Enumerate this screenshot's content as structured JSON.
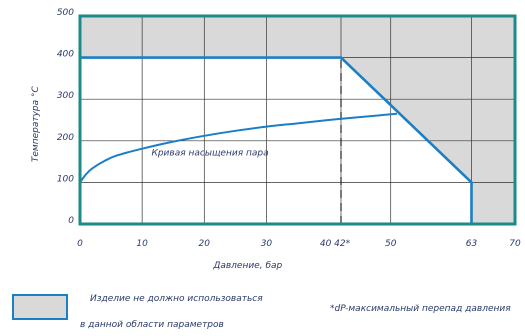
{
  "chart_data": {
    "type": "line",
    "xlabel": "Давление, бар",
    "ylabel": "Температура °С",
    "xlim": [
      0,
      70
    ],
    "ylim": [
      0,
      500
    ],
    "x_ticks": [
      0,
      10,
      20,
      30,
      42,
      50,
      63,
      70
    ],
    "x_tick_labels": [
      "0",
      "10",
      "20",
      "30",
      "40 42*",
      "50",
      "63",
      "70"
    ],
    "y_ticks": [
      0,
      100,
      200,
      300,
      400,
      500
    ],
    "y_tick_labels": [
      "0",
      "100",
      "200",
      "300",
      "400",
      "500"
    ],
    "grid": true,
    "forbidden_region": {
      "boundary": [
        [
          0,
          400
        ],
        [
          42,
          400
        ],
        [
          63,
          100
        ],
        [
          63,
          0
        ],
        [
          70,
          0
        ],
        [
          70,
          500
        ],
        [
          0,
          500
        ]
      ],
      "color": "#d9d9d9"
    },
    "series": [
      {
        "name": "Кривая насыщения пара",
        "color": "#1b7fc4",
        "x": [
          0,
          1,
          2,
          4,
          6,
          10,
          15,
          20,
          25,
          30,
          35,
          40,
          45,
          51
        ],
        "y": [
          100,
          120,
          134,
          152,
          165,
          181,
          198,
          212,
          224,
          234,
          242,
          250,
          257,
          265
        ]
      },
      {
        "name": "limit",
        "color": "#1b7fc4",
        "x": [
          0,
          42,
          63,
          63
        ],
        "y": [
          400,
          400,
          100,
          0
        ]
      }
    ],
    "dashed_marker": {
      "x": 42,
      "y_from": 0,
      "y_to": 400
    },
    "curve_label": {
      "text": "Кривая насыщения пара",
      "x": 11.5,
      "y": 165
    }
  },
  "legend": {
    "line1": "Изделие не должно использоваться",
    "line2": "в данной области параметров",
    "footnote": "*dP-максимальный перепад давления"
  },
  "colors": {
    "frame": "#1a8a8a",
    "curve": "#1b7fc4",
    "grid": "#333333",
    "region": "#d9d9d9"
  }
}
